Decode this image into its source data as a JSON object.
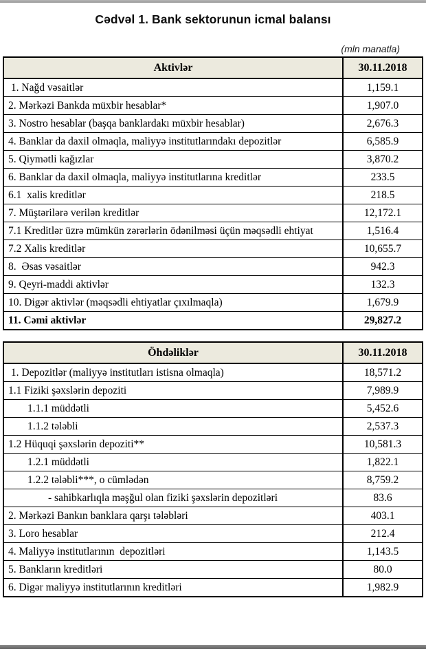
{
  "page": {
    "title": "Cədvəl 1. Bank sektorunun icmal balansı",
    "unit_note": "(mln manatla)"
  },
  "assets_table": {
    "header": {
      "label": "Aktivlər",
      "date": "30.11.2018"
    },
    "rows": [
      {
        "label": " 1. Nağd vəsaitlər",
        "value": "1,159.1",
        "indent": 0,
        "bold": false
      },
      {
        "label": "2. Mərkəzi Bankda müxbir hesablar*",
        "value": "1,907.0",
        "indent": 0,
        "bold": false
      },
      {
        "label": "3. Nostro hesablar (başqa banklardakı müxbir hesablar)",
        "value": "2,676.3",
        "indent": 0,
        "bold": false
      },
      {
        "label": "4. Banklar da daxil olmaqla, maliyyə institutlarındakı depozitlər",
        "value": "6,585.9",
        "indent": 0,
        "bold": false
      },
      {
        "label": "5. Qiymətli kağızlar",
        "value": "3,870.2",
        "indent": 0,
        "bold": false
      },
      {
        "label": "6. Banklar da daxil olmaqla, maliyyə institutlarına kreditlər",
        "value": "233.5",
        "indent": 0,
        "bold": false
      },
      {
        "label": "6.1  xalis kreditlər",
        "value": "218.5",
        "indent": 0,
        "bold": false
      },
      {
        "label": "7. Müştərilərə verilən kreditlər",
        "value": "12,172.1",
        "indent": 0,
        "bold": false
      },
      {
        "label": "7.1 Kreditlər üzrə mümkün zərərlərin ödənilməsi üçün məqsədli ehtiyat",
        "value": "1,516.4",
        "indent": 0,
        "bold": false
      },
      {
        "label": "7.2 Xalis kreditlər",
        "value": "10,655.7",
        "indent": 0,
        "bold": false
      },
      {
        "label": "8.  Əsas vəsaitlər",
        "value": "942.3",
        "indent": 0,
        "bold": false
      },
      {
        "label": "9. Qeyri-maddi aktivlər",
        "value": "132.3",
        "indent": 0,
        "bold": false
      },
      {
        "label": "10. Digər aktivlər (məqsədli ehtiyatlar çıxılmaqla)",
        "value": "1,679.9",
        "indent": 0,
        "bold": false
      },
      {
        "label": "11. Cəmi aktivlər",
        "value": "29,827.2",
        "indent": 0,
        "bold": true
      }
    ]
  },
  "liabilities_table": {
    "header": {
      "label": "Öhdəliklər",
      "date": "30.11.2018"
    },
    "rows": [
      {
        "label": " 1. Depozitlər (maliyyə institutları istisna olmaqla)",
        "value": "18,571.2",
        "indent": 0,
        "bold": false
      },
      {
        "label": "1.1 Fiziki şəxslərin depoziti",
        "value": "7,989.9",
        "indent": 0,
        "bold": false
      },
      {
        "label": "1.1.1 müddətli",
        "value": "5,452.6",
        "indent": 1,
        "bold": false
      },
      {
        "label": "1.1.2 tələbli",
        "value": "2,537.3",
        "indent": 1,
        "bold": false
      },
      {
        "label": "1.2 Hüquqi şəxslərin depoziti**",
        "value": "10,581.3",
        "indent": 0,
        "bold": false
      },
      {
        "label": "1.2.1 müddətli",
        "value": "1,822.1",
        "indent": 1,
        "bold": false
      },
      {
        "label": "1.2.2 tələbli***, o cümlədən",
        "value": "8,759.2",
        "indent": 1,
        "bold": false
      },
      {
        "label": "- sahibkarlıqla məşğul olan fiziki şəxslərin depozitləri",
        "value": "83.6",
        "indent": 2,
        "bold": false
      },
      {
        "label": "2. Mərkəzi Bankın banklara qarşı tələbləri",
        "value": "403.1",
        "indent": 0,
        "bold": false
      },
      {
        "label": "3. Loro hesablar",
        "value": "212.4",
        "indent": 0,
        "bold": false
      },
      {
        "label": "4. Maliyyə institutlarının  depozitləri",
        "value": "1,143.5",
        "indent": 0,
        "bold": false
      },
      {
        "label": "5. Bankların kreditləri",
        "value": "80.0",
        "indent": 0,
        "bold": false
      },
      {
        "label": "6. Digər maliyyə institutlarının kreditləri",
        "value": "1,982.9",
        "indent": 0,
        "bold": false
      }
    ]
  }
}
